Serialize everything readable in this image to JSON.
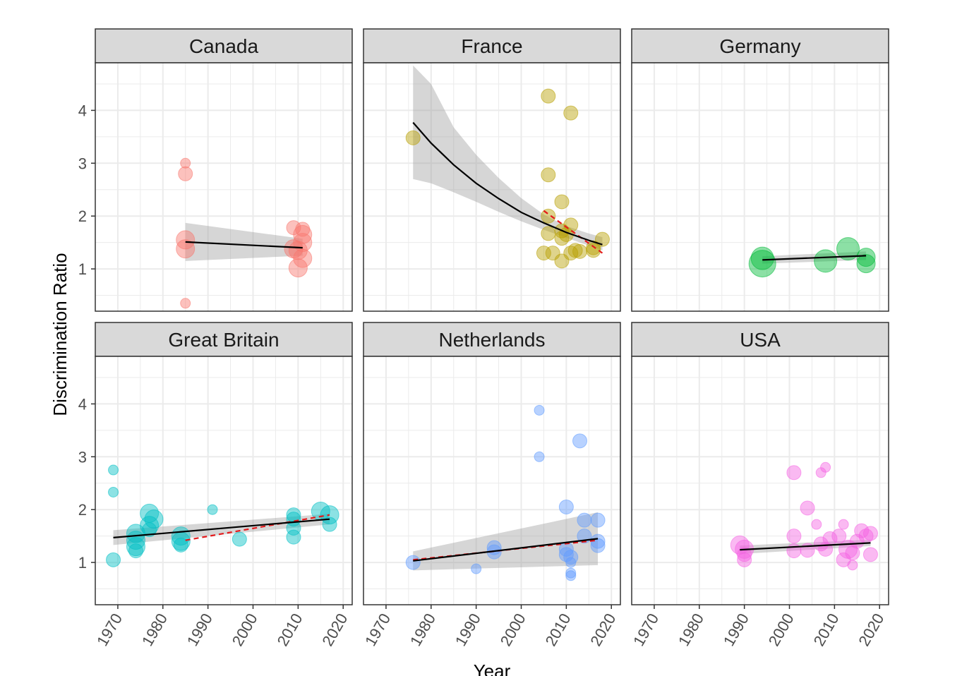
{
  "chart_data": {
    "type": "scatter",
    "xlabel": "Year",
    "ylabel": "Discrimination Ratio",
    "xlim": [
      1965,
      2022
    ],
    "ylim": [
      0.2,
      4.9
    ],
    "x_ticks": [
      1970,
      1980,
      1990,
      2000,
      2010,
      2020
    ],
    "x_tick_labels": [
      "1970",
      "1980",
      "1990",
      "2000",
      "2010",
      "2020"
    ],
    "y_ticks": [
      1,
      2,
      3,
      4
    ],
    "y_tick_labels": [
      "1",
      "2",
      "3",
      "4"
    ],
    "grid": true,
    "facets": [
      {
        "name": "Canada",
        "color": "#F8766D",
        "points": [
          {
            "x": 1985,
            "y": 3.0,
            "size": 1
          },
          {
            "x": 1985,
            "y": 2.8,
            "size": 2
          },
          {
            "x": 1985,
            "y": 1.55,
            "size": 3
          },
          {
            "x": 1985,
            "y": 1.38,
            "size": 3
          },
          {
            "x": 1985,
            "y": 0.35,
            "size": 1
          },
          {
            "x": 2009,
            "y": 1.78,
            "size": 2
          },
          {
            "x": 2009,
            "y": 1.38,
            "size": 3
          },
          {
            "x": 2010,
            "y": 1.02,
            "size": 3
          },
          {
            "x": 2010,
            "y": 1.35,
            "size": 3
          },
          {
            "x": 2011,
            "y": 1.2,
            "size": 3
          },
          {
            "x": 2011,
            "y": 1.5,
            "size": 3
          },
          {
            "x": 2011,
            "y": 1.65,
            "size": 3
          },
          {
            "x": 2011,
            "y": 1.75,
            "size": 2
          }
        ],
        "fit": {
          "x": [
            1985,
            2011
          ],
          "y": [
            1.51,
            1.4
          ],
          "lower": [
            1.15,
            1.25
          ],
          "upper": [
            1.87,
            1.57
          ]
        }
      },
      {
        "name": "France",
        "color": "#B79F00",
        "points": [
          {
            "x": 1976,
            "y": 3.48,
            "size": 2
          },
          {
            "x": 2006,
            "y": 4.27,
            "size": 2
          },
          {
            "x": 2011,
            "y": 3.95,
            "size": 2
          },
          {
            "x": 2006,
            "y": 2.78,
            "size": 2
          },
          {
            "x": 2009,
            "y": 2.27,
            "size": 2
          },
          {
            "x": 2006,
            "y": 2.0,
            "size": 2
          },
          {
            "x": 2011,
            "y": 1.83,
            "size": 2
          },
          {
            "x": 2009,
            "y": 1.72,
            "size": 2
          },
          {
            "x": 2010,
            "y": 1.65,
            "size": 2
          },
          {
            "x": 2009,
            "y": 1.58,
            "size": 2
          },
          {
            "x": 2006,
            "y": 1.67,
            "size": 2
          },
          {
            "x": 2011,
            "y": 1.3,
            "size": 2
          },
          {
            "x": 2005,
            "y": 1.3,
            "size": 2
          },
          {
            "x": 2007,
            "y": 1.3,
            "size": 2
          },
          {
            "x": 2013,
            "y": 1.33,
            "size": 2
          },
          {
            "x": 2009,
            "y": 1.15,
            "size": 2
          },
          {
            "x": 2012,
            "y": 1.35,
            "size": 2
          },
          {
            "x": 2016,
            "y": 1.4,
            "size": 2
          },
          {
            "x": 2016,
            "y": 1.35,
            "size": 2
          },
          {
            "x": 2018,
            "y": 1.56,
            "size": 2
          }
        ],
        "fit": {
          "x": [
            1976,
            1980,
            1985,
            1990,
            1995,
            2000,
            2005,
            2010,
            2015,
            2018
          ],
          "y": [
            3.77,
            3.38,
            2.97,
            2.62,
            2.33,
            2.07,
            1.87,
            1.69,
            1.54,
            1.46
          ],
          "lower": [
            2.7,
            2.62,
            2.45,
            2.27,
            2.08,
            1.9,
            1.74,
            1.59,
            1.44,
            1.35
          ],
          "upper": [
            4.85,
            4.5,
            3.68,
            3.16,
            2.72,
            2.34,
            2.03,
            1.81,
            1.67,
            1.6
          ]
        },
        "dashed": {
          "x": [
            2005,
            2018
          ],
          "y": [
            2.1,
            1.3
          ]
        }
      },
      {
        "name": "Germany",
        "color": "#00BA38",
        "points": [
          {
            "x": 1994,
            "y": 1.1,
            "size": 5
          },
          {
            "x": 1994,
            "y": 1.2,
            "size": 4
          },
          {
            "x": 2008,
            "y": 1.15,
            "size": 4
          },
          {
            "x": 2013,
            "y": 1.38,
            "size": 4
          },
          {
            "x": 2017,
            "y": 1.22,
            "size": 3
          },
          {
            "x": 2017,
            "y": 1.1,
            "size": 3
          }
        ],
        "fit": {
          "x": [
            1994,
            2017
          ],
          "y": [
            1.17,
            1.25
          ],
          "lower": [
            1.1,
            1.17
          ],
          "upper": [
            1.24,
            1.33
          ]
        }
      },
      {
        "name": "Great Britain",
        "color": "#00BFC4",
        "points": [
          {
            "x": 1969,
            "y": 2.75,
            "size": 1
          },
          {
            "x": 1969,
            "y": 2.33,
            "size": 1
          },
          {
            "x": 1969,
            "y": 1.05,
            "size": 2
          },
          {
            "x": 1974,
            "y": 1.55,
            "size": 3
          },
          {
            "x": 1974,
            "y": 1.42,
            "size": 3
          },
          {
            "x": 1974,
            "y": 1.3,
            "size": 3
          },
          {
            "x": 1974,
            "y": 1.22,
            "size": 2
          },
          {
            "x": 1977,
            "y": 1.93,
            "size": 3
          },
          {
            "x": 1978,
            "y": 1.82,
            "size": 3
          },
          {
            "x": 1977,
            "y": 1.7,
            "size": 3
          },
          {
            "x": 1977,
            "y": 1.62,
            "size": 2
          },
          {
            "x": 1984,
            "y": 1.5,
            "size": 3
          },
          {
            "x": 1984,
            "y": 1.4,
            "size": 3
          },
          {
            "x": 1984,
            "y": 1.33,
            "size": 2
          },
          {
            "x": 1991,
            "y": 2.0,
            "size": 1
          },
          {
            "x": 1997,
            "y": 1.44,
            "size": 2
          },
          {
            "x": 2009,
            "y": 1.9,
            "size": 2
          },
          {
            "x": 2009,
            "y": 1.82,
            "size": 2
          },
          {
            "x": 2009,
            "y": 1.65,
            "size": 2
          },
          {
            "x": 2009,
            "y": 1.48,
            "size": 2
          },
          {
            "x": 2015,
            "y": 1.97,
            "size": 3
          },
          {
            "x": 2017,
            "y": 1.9,
            "size": 3
          },
          {
            "x": 2017,
            "y": 1.72,
            "size": 2
          }
        ],
        "fit": {
          "x": [
            1969,
            2017
          ],
          "y": [
            1.47,
            1.82
          ],
          "lower": [
            1.33,
            1.72
          ],
          "upper": [
            1.61,
            1.92
          ]
        },
        "dashed": {
          "x": [
            1985,
            2017
          ],
          "y": [
            1.42,
            1.9
          ]
        }
      },
      {
        "name": "Netherlands",
        "color": "#619CFF",
        "points": [
          {
            "x": 2004,
            "y": 3.88,
            "size": 1
          },
          {
            "x": 2004,
            "y": 3.0,
            "size": 1
          },
          {
            "x": 2013,
            "y": 3.3,
            "size": 2
          },
          {
            "x": 2010,
            "y": 2.05,
            "size": 2
          },
          {
            "x": 2014,
            "y": 1.8,
            "size": 2
          },
          {
            "x": 2017,
            "y": 1.8,
            "size": 2
          },
          {
            "x": 2014,
            "y": 1.5,
            "size": 2
          },
          {
            "x": 2017,
            "y": 1.4,
            "size": 2
          },
          {
            "x": 2017,
            "y": 1.32,
            "size": 2
          },
          {
            "x": 2010,
            "y": 1.25,
            "size": 2
          },
          {
            "x": 2010,
            "y": 1.15,
            "size": 2
          },
          {
            "x": 2011,
            "y": 1.1,
            "size": 2
          },
          {
            "x": 2011,
            "y": 1.0,
            "size": 1
          },
          {
            "x": 2011,
            "y": 0.8,
            "size": 1
          },
          {
            "x": 2011,
            "y": 0.75,
            "size": 1
          },
          {
            "x": 1994,
            "y": 1.28,
            "size": 2
          },
          {
            "x": 1994,
            "y": 1.2,
            "size": 2
          },
          {
            "x": 1990,
            "y": 0.88,
            "size": 1
          },
          {
            "x": 1976,
            "y": 1.0,
            "size": 2
          }
        ],
        "fit": {
          "x": [
            1976,
            2017
          ],
          "y": [
            1.03,
            1.45
          ],
          "lower": [
            0.85,
            0.95
          ],
          "upper": [
            1.21,
            1.95
          ]
        },
        "dashed": {
          "x": [
            1976,
            2017
          ],
          "y": [
            1.05,
            1.42
          ]
        }
      },
      {
        "name": "USA",
        "color": "#F564E3",
        "points": [
          {
            "x": 2008,
            "y": 2.8,
            "size": 1
          },
          {
            "x": 2007,
            "y": 2.7,
            "size": 1
          },
          {
            "x": 2001,
            "y": 2.7,
            "size": 2
          },
          {
            "x": 2004,
            "y": 2.03,
            "size": 2
          },
          {
            "x": 2006,
            "y": 1.72,
            "size": 1
          },
          {
            "x": 2001,
            "y": 1.5,
            "size": 2
          },
          {
            "x": 1989,
            "y": 1.33,
            "size": 3
          },
          {
            "x": 1990,
            "y": 1.25,
            "size": 3
          },
          {
            "x": 1990,
            "y": 1.15,
            "size": 2
          },
          {
            "x": 1990,
            "y": 1.05,
            "size": 2
          },
          {
            "x": 2001,
            "y": 1.22,
            "size": 2
          },
          {
            "x": 2004,
            "y": 1.23,
            "size": 2
          },
          {
            "x": 2007,
            "y": 1.35,
            "size": 2
          },
          {
            "x": 2008,
            "y": 1.25,
            "size": 2
          },
          {
            "x": 2009,
            "y": 1.45,
            "size": 2
          },
          {
            "x": 2011,
            "y": 1.5,
            "size": 2
          },
          {
            "x": 2012,
            "y": 1.72,
            "size": 1
          },
          {
            "x": 2012,
            "y": 1.05,
            "size": 2
          },
          {
            "x": 2013,
            "y": 1.25,
            "size": 3
          },
          {
            "x": 2014,
            "y": 0.95,
            "size": 1
          },
          {
            "x": 2015,
            "y": 1.4,
            "size": 2
          },
          {
            "x": 2016,
            "y": 1.6,
            "size": 2
          },
          {
            "x": 2017,
            "y": 1.5,
            "size": 2
          },
          {
            "x": 2018,
            "y": 1.55,
            "size": 2
          },
          {
            "x": 2018,
            "y": 1.15,
            "size": 2
          },
          {
            "x": 2014,
            "y": 1.18,
            "size": 2
          }
        ],
        "fit": {
          "x": [
            1989,
            2018
          ],
          "y": [
            1.24,
            1.37
          ],
          "lower": [
            1.16,
            1.31
          ],
          "upper": [
            1.32,
            1.43
          ]
        }
      }
    ]
  },
  "colors": {
    "strip_fill": "#d9d9d9",
    "panel_border": "#333333",
    "grid_major": "#ebebeb",
    "fit_line": "#000000",
    "ribbon": "#999999",
    "dashed_line": "#e41a1c"
  }
}
